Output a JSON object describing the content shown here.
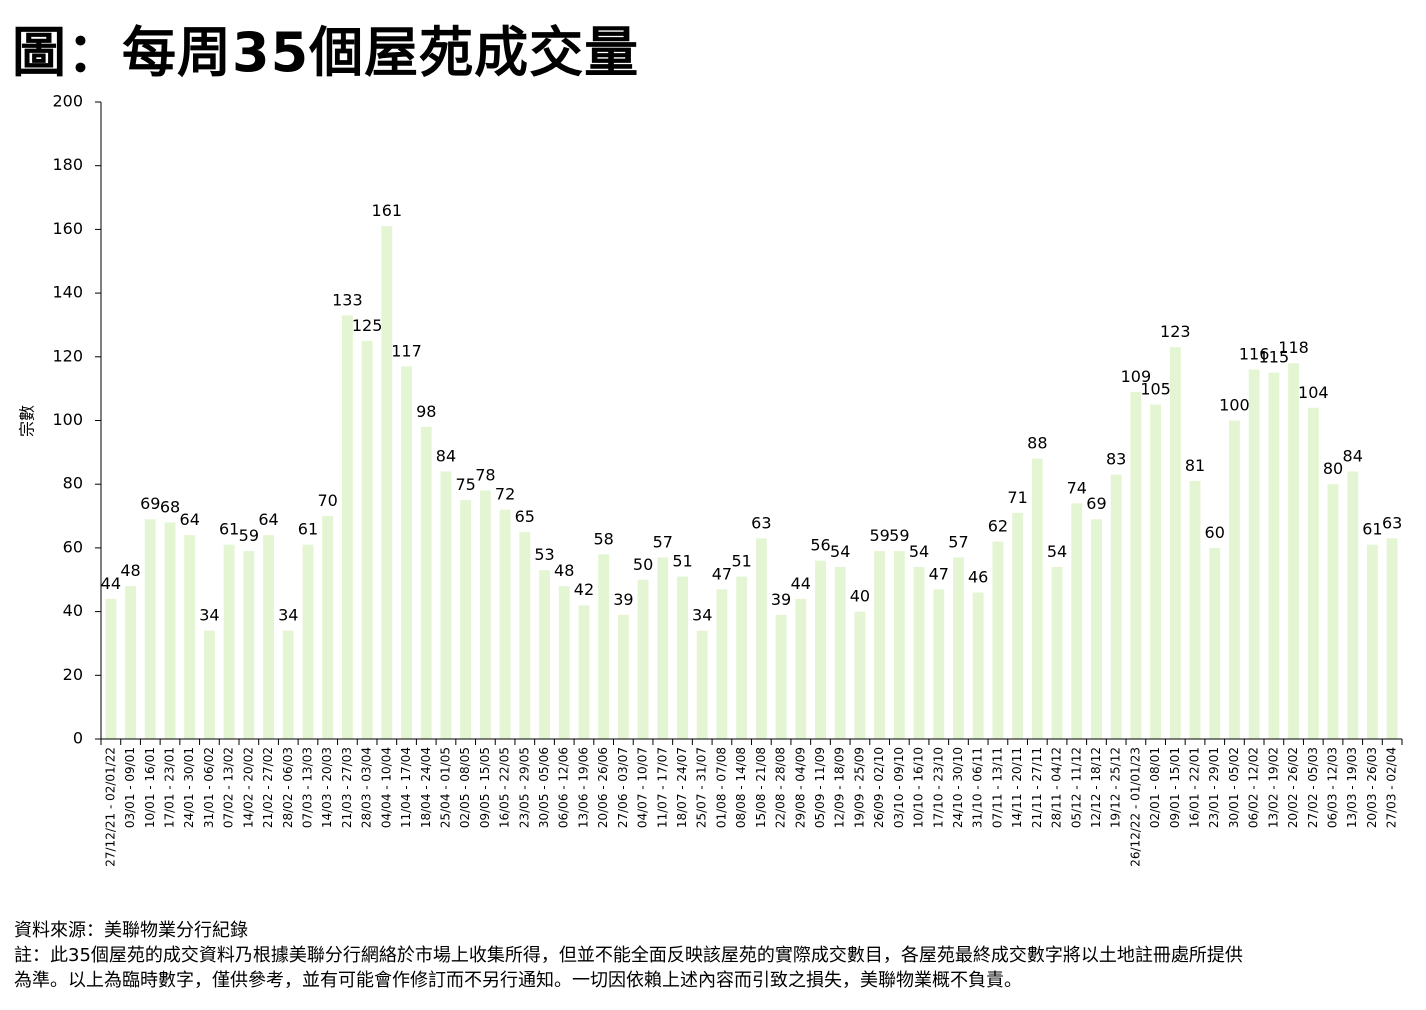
{
  "header": {
    "title": "圖：每周35個屋苑成交量"
  },
  "footer": {
    "source": "資料來源：美聯物業分行紀錄",
    "note_line1": "註：此35個屋苑的成交資料乃根據美聯分行網絡於市場上收集所得，但並不能全面反映該屋苑的實際成交數目，各屋苑最終成交數字將以土地註冊處所提供",
    "note_line2": "為準。以上為臨時數字，僅供參考，並有可能會作修訂而不另行通知。一切因依賴上述內容而引致之損失，美聯物業概不負責。"
  },
  "chart_data": {
    "type": "bar",
    "ylabel": "宗數",
    "xlabel": "",
    "ylim": [
      0,
      200
    ],
    "yticks": [
      0,
      20,
      40,
      60,
      80,
      100,
      120,
      140,
      160,
      180,
      200
    ],
    "grid": false,
    "legend": "none",
    "bar_color": "#e3f5d2",
    "categories": [
      "27/12/21 - 02/01/22",
      "03/01 - 09/01",
      "10/01 - 16/01",
      "17/01 - 23/01",
      "24/01 - 30/01",
      "31/01 - 06/02",
      "07/02 - 13/02",
      "14/02 - 20/02",
      "21/02 - 27/02",
      "28/02 - 06/03",
      "07/03 - 13/03",
      "14/03 - 20/03",
      "21/03 - 27/03",
      "28/03 - 03/04",
      "04/04 - 10/04",
      "11/04 - 17/04",
      "18/04 - 24/04",
      "25/04 - 01/05",
      "02/05 - 08/05",
      "09/05 - 15/05",
      "16/05 - 22/05",
      "23/05 - 29/05",
      "30/05 - 05/06",
      "06/06 - 12/06",
      "13/06 - 19/06",
      "20/06 - 26/06",
      "27/06 - 03/07",
      "04/07 - 10/07",
      "11/07 - 17/07",
      "18/07 - 24/07",
      "25/07 - 31/07",
      "01/08 - 07/08",
      "08/08 - 14/08",
      "15/08 - 21/08",
      "22/08 - 28/08",
      "29/08 - 04/09",
      "05/09 - 11/09",
      "12/09 - 18/09",
      "19/09 - 25/09",
      "26/09 - 02/10",
      "03/10 - 09/10",
      "10/10 - 16/10",
      "17/10 - 23/10",
      "24/10 - 30/10",
      "31/10 - 06/11",
      "07/11 - 13/11",
      "14/11 - 20/11",
      "21/11 - 27/11",
      "28/11 - 04/12",
      "05/12 - 11/12",
      "12/12 - 18/12",
      "19/12 - 25/12",
      "26/12/22 - 01/01/23",
      "02/01 - 08/01",
      "09/01 - 15/01",
      "16/01 - 22/01",
      "23/01 - 29/01",
      "30/01 - 05/02",
      "06/02 - 12/02",
      "13/02 - 19/02",
      "20/02 - 26/02",
      "27/02 - 05/03",
      "06/03 - 12/03",
      "13/03 - 19/03",
      "20/03 - 26/03",
      "27/03 - 02/04"
    ],
    "values": [
      44,
      48,
      69,
      68,
      64,
      34,
      61,
      59,
      64,
      34,
      61,
      70,
      133,
      125,
      161,
      117,
      98,
      84,
      75,
      78,
      72,
      65,
      53,
      48,
      42,
      58,
      39,
      50,
      57,
      51,
      34,
      47,
      51,
      63,
      39,
      44,
      56,
      54,
      40,
      59,
      59,
      54,
      47,
      57,
      46,
      62,
      71,
      88,
      54,
      74,
      69,
      83,
      109,
      105,
      123,
      81,
      60,
      100,
      116,
      115,
      118,
      104,
      80,
      84,
      61,
      63
    ]
  }
}
